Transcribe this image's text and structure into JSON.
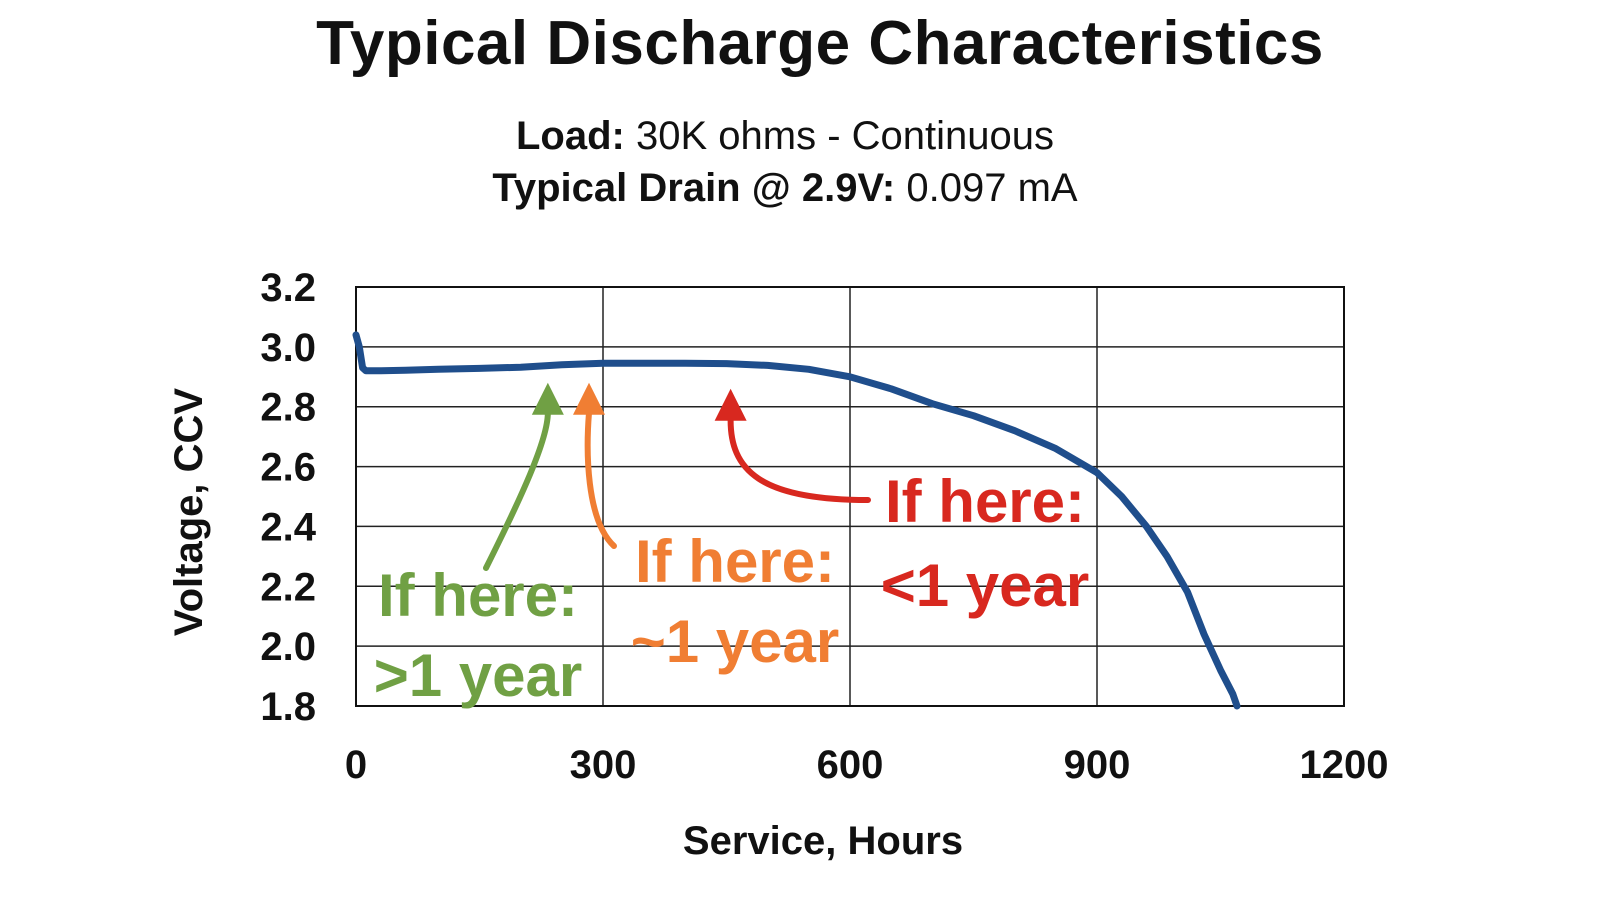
{
  "chart_data": {
    "type": "line",
    "title": "Typical Discharge Characteristics",
    "subtitle_lines": [
      {
        "label": "Load:",
        "value": "30K ohms - Continuous"
      },
      {
        "label": "Typical Drain @ 2.9V:",
        "value": "0.097 mA"
      }
    ],
    "xlabel": "Service, Hours",
    "ylabel": "Voltage, CCV",
    "xlim": [
      0,
      1200
    ],
    "ylim": [
      1.8,
      3.2
    ],
    "x_ticks": [
      "0",
      "300",
      "600",
      "900",
      "1200"
    ],
    "y_ticks": [
      "1.8",
      "2.0",
      "2.2",
      "2.4",
      "2.6",
      "2.8",
      "3.0",
      "3.2"
    ],
    "x_tick_values": [
      0,
      300,
      600,
      900,
      1200
    ],
    "y_tick_values": [
      1.8,
      2.0,
      2.2,
      2.4,
      2.6,
      2.8,
      3.0,
      3.2
    ],
    "grid": true,
    "series": [
      {
        "color": "#1f4e8c",
        "x": [
          0,
          4,
          8,
          12,
          30,
          60,
          100,
          150,
          200,
          250,
          300,
          350,
          400,
          450,
          500,
          550,
          600,
          650,
          700,
          750,
          800,
          850,
          900,
          930,
          960,
          985,
          1010,
          1030,
          1050,
          1065,
          1070
        ],
        "y": [
          3.04,
          3.0,
          2.93,
          2.92,
          2.92,
          2.922,
          2.925,
          2.928,
          2.932,
          2.94,
          2.945,
          2.945,
          2.945,
          2.944,
          2.938,
          2.925,
          2.9,
          2.86,
          2.81,
          2.77,
          2.72,
          2.66,
          2.58,
          2.5,
          2.4,
          2.3,
          2.18,
          2.04,
          1.92,
          1.84,
          1.8
        ]
      }
    ],
    "annotations": [
      {
        "lines": [
          "If here:",
          ">1 year"
        ],
        "color": "#70a044",
        "arrow_to": {
          "x": 233,
          "y": 2.88
        }
      },
      {
        "lines": [
          "If here:",
          "~1 year"
        ],
        "color": "#f07e33",
        "arrow_to": {
          "x": 283,
          "y": 2.88
        }
      },
      {
        "lines": [
          "If here:",
          "<1 year"
        ],
        "color": "#d8281f",
        "arrow_to": {
          "x": 455,
          "y": 2.86
        }
      }
    ]
  }
}
